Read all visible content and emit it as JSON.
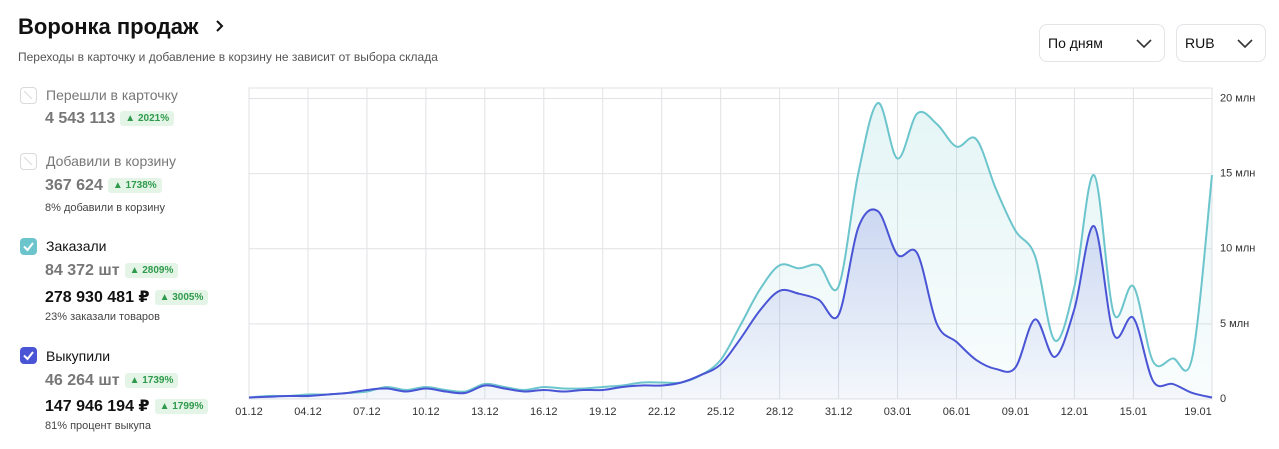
{
  "header": {
    "title": "Воронка продаж",
    "subtitle": "Переходы в карточку и добавление в корзину не зависит от выбора склада"
  },
  "controls": {
    "period": "По дням",
    "currency": "RUB"
  },
  "metrics": [
    {
      "label": "Перешли в карточку",
      "checked": false,
      "value": "4 543 113",
      "change": "2021%"
    },
    {
      "label": "Добавили в корзину",
      "checked": false,
      "value": "367 624",
      "change": "1738%",
      "note": "8% добавили в корзину"
    },
    {
      "checked": true,
      "value": "84 372 шт",
      "change": "2809%",
      "sum": "278 930 481 ₽",
      "sum_change": "3005%",
      "note": "23% заказали товаров"
    },
    {
      "checked": true,
      "value": "46 264 шт",
      "change": "1739%",
      "sum": "147 946 194 ₽",
      "sum_change": "1799%",
      "note": "81% процент выкупа"
    }
  ],
  "chart_data": {
    "type": "area",
    "categories": [
      "01.12",
      null,
      null,
      "04.12",
      null,
      null,
      "07.12",
      null,
      null,
      "10.12",
      null,
      null,
      "13.12",
      null,
      null,
      "16.12",
      null,
      null,
      "19.12",
      null,
      null,
      "22.12",
      null,
      null,
      "25.12",
      null,
      null,
      "28.12",
      null,
      null,
      "31.12",
      null,
      null,
      "03.01",
      null,
      null,
      "06.01",
      null,
      null,
      "09.01",
      null,
      null,
      "12.01",
      null,
      null,
      "15.01",
      null,
      null,
      null,
      "19.01"
    ],
    "series": [
      {
        "name": "Заказали",
        "color": "#6cc5cc",
        "values": [
          0.1,
          0.2,
          0.2,
          0.3,
          0.3,
          0.4,
          0.5,
          0.8,
          0.6,
          0.8,
          0.6,
          0.5,
          1.0,
          0.8,
          0.6,
          0.8,
          0.7,
          0.7,
          0.8,
          0.9,
          1.1,
          1.1,
          1.1,
          1.6,
          2.6,
          4.9,
          7.3,
          8.9,
          8.7,
          8.9,
          7.5,
          15.0,
          19.7,
          16.0,
          19.0,
          18.3,
          16.8,
          17.3,
          14.0,
          11.2,
          9.5,
          3.9,
          7.5,
          14.9,
          5.7,
          7.5,
          2.5,
          2.7,
          2.8,
          14.9
        ]
      },
      {
        "name": "Выкупили",
        "color": "#4a55d6",
        "values": [
          0.1,
          0.15,
          0.2,
          0.2,
          0.3,
          0.4,
          0.6,
          0.7,
          0.5,
          0.7,
          0.5,
          0.4,
          0.9,
          0.7,
          0.5,
          0.6,
          0.5,
          0.6,
          0.6,
          0.8,
          0.9,
          0.9,
          1.1,
          1.6,
          2.3,
          4.0,
          5.9,
          7.2,
          7.0,
          6.6,
          5.6,
          11.4,
          12.5,
          9.6,
          9.7,
          5.0,
          3.8,
          2.6,
          2.0,
          2.1,
          5.3,
          2.8,
          6.0,
          11.5,
          4.3,
          5.4,
          1.2,
          1.0,
          0.4,
          0.1
        ]
      }
    ],
    "ylim": [
      0,
      20.7
    ],
    "yticks": [
      0,
      {
        "value": 5,
        "label": "5 млн"
      },
      {
        "value": 10,
        "label": "10 млн"
      },
      {
        "value": 15,
        "label": "15 млн"
      },
      {
        "value": 20,
        "label": "20 млн"
      }
    ],
    "grid": true
  }
}
